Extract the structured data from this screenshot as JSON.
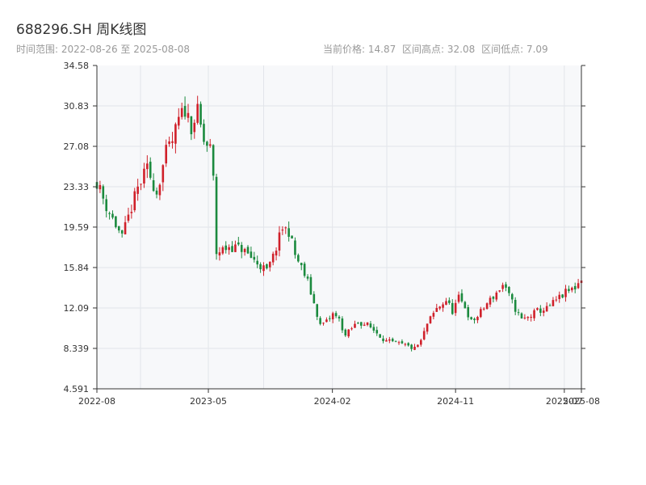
{
  "title": "688296.SH 周K线图",
  "range_text": "时间范围: 2022-08-26 至 2025-08-08",
  "stats": {
    "current": "当前价格: 14.87",
    "high": "区间高点: 32.08",
    "low": "区间低点: 7.09"
  },
  "colors": {
    "up": "#d0202a",
    "down": "#1b8a3e",
    "plot_bg": "#f7f8fa",
    "grid": "#e2e5ea",
    "axis": "#333333"
  },
  "chart_data": {
    "type": "candlestick",
    "ylim": [
      4.591,
      34.58
    ],
    "yticks": [
      "34.58",
      "30.83",
      "27.08",
      "23.33",
      "19.59",
      "15.84",
      "12.09",
      "8.339",
      "4.591"
    ],
    "xlim": [
      "2022-08-26",
      "2025-08-08"
    ],
    "xticks": [
      {
        "date": "2022-08-26",
        "label": "2022-08"
      },
      {
        "date": "2023-05-01",
        "label": "2023-05"
      },
      {
        "date": "2024-02-01",
        "label": "2024-02"
      },
      {
        "date": "2024-11-01",
        "label": "2024-11"
      },
      {
        "date": "2025-07-01",
        "label": "2025-07"
      },
      {
        "date": "2025-08-08",
        "label": "2025-08"
      }
    ],
    "grid": true,
    "anchors": [
      [
        "2022-08-26",
        23.8
      ],
      [
        "2022-09-16",
        21.5
      ],
      [
        "2022-10-07",
        19.8
      ],
      [
        "2022-10-21",
        18.6
      ],
      [
        "2022-11-04",
        20.5
      ],
      [
        "2022-11-25",
        23.2
      ],
      [
        "2022-12-16",
        25.0
      ],
      [
        "2023-01-06",
        22.8
      ],
      [
        "2023-01-27",
        26.5
      ],
      [
        "2023-02-10",
        27.5
      ],
      [
        "2023-02-24",
        29.5
      ],
      [
        "2023-03-10",
        30.5
      ],
      [
        "2023-03-24",
        29.0
      ],
      [
        "2023-04-07",
        30.2
      ],
      [
        "2023-04-21",
        27.5
      ],
      [
        "2023-05-05",
        26.8
      ],
      [
        "2023-05-12",
        24.0
      ],
      [
        "2023-05-19",
        17.2
      ],
      [
        "2023-06-16",
        17.8
      ],
      [
        "2023-07-14",
        17.6
      ],
      [
        "2023-08-11",
        16.5
      ],
      [
        "2023-09-08",
        15.5
      ],
      [
        "2023-09-22",
        16.8
      ],
      [
        "2023-10-13",
        19.5
      ],
      [
        "2023-10-27",
        19.2
      ],
      [
        "2023-11-10",
        17.0
      ],
      [
        "2023-11-24",
        15.8
      ],
      [
        "2023-12-08",
        14.5
      ],
      [
        "2023-12-22",
        12.5
      ],
      [
        "2024-01-05",
        10.5
      ],
      [
        "2024-01-19",
        10.8
      ],
      [
        "2024-02-02",
        11.5
      ],
      [
        "2024-02-16",
        11.0
      ],
      [
        "2024-03-01",
        9.5
      ],
      [
        "2024-03-15",
        10.2
      ],
      [
        "2024-03-29",
        10.8
      ],
      [
        "2024-04-19",
        10.5
      ],
      [
        "2024-05-10",
        9.8
      ],
      [
        "2024-05-31",
        9.0
      ],
      [
        "2024-06-21",
        8.8
      ],
      [
        "2024-07-12",
        8.6
      ],
      [
        "2024-08-02",
        8.3
      ],
      [
        "2024-08-16",
        9.0
      ],
      [
        "2024-08-30",
        10.6
      ],
      [
        "2024-09-20",
        12.0
      ],
      [
        "2024-10-11",
        12.8
      ],
      [
        "2024-10-25",
        11.8
      ],
      [
        "2024-11-08",
        13.0
      ],
      [
        "2024-11-22",
        12.2
      ],
      [
        "2024-12-06",
        10.8
      ],
      [
        "2024-12-20",
        11.3
      ],
      [
        "2025-01-10",
        12.5
      ],
      [
        "2025-01-31",
        13.5
      ],
      [
        "2025-02-14",
        14.2
      ],
      [
        "2025-02-28",
        13.2
      ],
      [
        "2025-03-14",
        12.0
      ],
      [
        "2025-03-28",
        11.0
      ],
      [
        "2025-04-11",
        11.2
      ],
      [
        "2025-05-02",
        11.8
      ],
      [
        "2025-05-23",
        12.0
      ],
      [
        "2025-06-13",
        12.8
      ],
      [
        "2025-07-04",
        13.5
      ],
      [
        "2025-07-25",
        14.0
      ],
      [
        "2025-08-08",
        14.87
      ]
    ]
  }
}
